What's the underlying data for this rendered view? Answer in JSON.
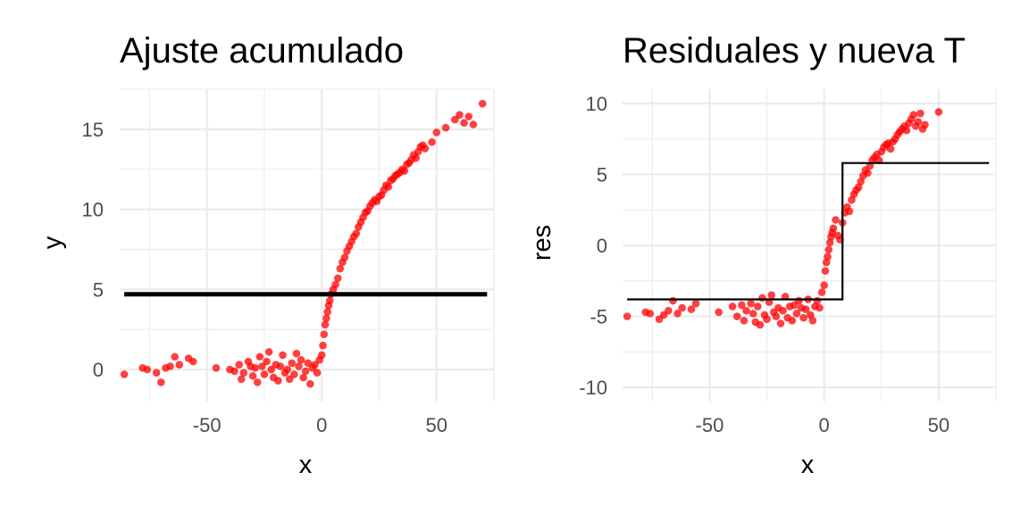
{
  "chart_data": [
    {
      "type": "scatter",
      "title": "Ajuste acumulado",
      "xlabel": "x",
      "ylabel": "y",
      "xlim": [
        -88,
        75
      ],
      "ylim": [
        -2,
        17.5
      ],
      "x_ticks": [
        -50,
        0,
        50
      ],
      "x_tick_labels": [
        "-50",
        "0",
        "50"
      ],
      "y_ticks": [
        0,
        5,
        10,
        15
      ],
      "y_tick_labels": [
        "0",
        "5",
        "10",
        "15"
      ],
      "grid": true,
      "colors": {
        "points": "#ff0000",
        "line": "#000000"
      },
      "series": [
        {
          "kind": "points",
          "x": [
            -86,
            -78,
            -76,
            -72,
            -70,
            -68,
            -66,
            -64,
            -62,
            -58,
            -56,
            -46,
            -40,
            -38,
            -36,
            -35,
            -34,
            -32,
            -31,
            -30,
            -29,
            -28,
            -27,
            -26,
            -25,
            -24,
            -23,
            -22,
            -21,
            -20,
            -19,
            -18,
            -17,
            -16,
            -15,
            -14,
            -13,
            -12,
            -11,
            -10,
            -9,
            -8,
            -7,
            -6,
            -5,
            -4,
            -3,
            -2,
            -1,
            0,
            0.5,
            1,
            1.5,
            2,
            2.5,
            3,
            3.5,
            4,
            5,
            6,
            7,
            8,
            9,
            10,
            11,
            12,
            13,
            14,
            15,
            16,
            17,
            18,
            19,
            20,
            21,
            22,
            23,
            24,
            25,
            26,
            27,
            28,
            29,
            30,
            31,
            32,
            33,
            34,
            35,
            36,
            37,
            38,
            39,
            40,
            41,
            42,
            43,
            44,
            45,
            48,
            50,
            54,
            58,
            60,
            62,
            64,
            66,
            70
          ],
          "y": [
            -0.3,
            0.1,
            0,
            -0.2,
            -0.8,
            0.1,
            0.2,
            0.8,
            0.3,
            0.7,
            0.5,
            0.1,
            0,
            -0.1,
            0.3,
            -0.6,
            -0.2,
            0.5,
            0.2,
            -0.4,
            0.1,
            -0.8,
            0.8,
            0.2,
            -0.3,
            0.5,
            1.1,
            0,
            -0.5,
            0.3,
            -0.7,
            0.2,
            0.9,
            -0.2,
            0,
            -0.6,
            0.4,
            -0.3,
            1,
            0.2,
            0.6,
            -0.5,
            -0.1,
            0.4,
            -0.9,
            0.1,
            0.3,
            -0.2,
            0.6,
            0.9,
            1.5,
            2.2,
            2.8,
            3.2,
            3.6,
            4,
            4.3,
            4.7,
            5,
            5.3,
            5.7,
            6.3,
            6.7,
            7,
            7.4,
            7.7,
            8,
            8.3,
            8.5,
            8.9,
            9.2,
            9.5,
            9.8,
            9.9,
            10.2,
            10.4,
            10.6,
            10.5,
            10.8,
            10.9,
            11.2,
            11.5,
            11.4,
            11.8,
            11.9,
            12.1,
            12.2,
            12.3,
            12.5,
            12.4,
            12.8,
            12.9,
            13.1,
            13.4,
            13.2,
            13.6,
            13.9,
            14,
            13.8,
            14.2,
            14.8,
            15.1,
            15.6,
            15.9,
            15.4,
            15.8,
            15.3,
            16.6
          ]
        },
        {
          "kind": "line",
          "x": [
            -86,
            72
          ],
          "y": [
            4.7,
            4.7
          ]
        }
      ]
    },
    {
      "type": "scatter",
      "title": "Residuales y nueva T",
      "xlabel": "x",
      "ylabel": "res",
      "xlim": [
        -88,
        75
      ],
      "ylim": [
        -11,
        11
      ],
      "x_ticks": [
        -50,
        0,
        50
      ],
      "x_tick_labels": [
        "-50",
        "0",
        "50"
      ],
      "y_ticks": [
        -10,
        -5,
        0,
        5,
        10
      ],
      "y_tick_labels": [
        "-10",
        "-5",
        "0",
        "5",
        "10"
      ],
      "grid": true,
      "colors": {
        "points": "#ff0000",
        "line": "#000000"
      },
      "series": [
        {
          "kind": "points",
          "x": [
            -86,
            -78,
            -76,
            -72,
            -70,
            -68,
            -66,
            -64,
            -62,
            -58,
            -56,
            -46,
            -40,
            -38,
            -36,
            -35,
            -34,
            -32,
            -31,
            -30,
            -29,
            -28,
            -27,
            -26,
            -25,
            -24,
            -23,
            -22,
            -21,
            -20,
            -19,
            -18,
            -17,
            -16,
            -15,
            -14,
            -13,
            -12,
            -11,
            -10,
            -9,
            -8,
            -7,
            -6,
            -5,
            -4,
            -3,
            -2,
            -1,
            0,
            0.5,
            1,
            1.5,
            2,
            2.5,
            3,
            3.5,
            4,
            5,
            6,
            7,
            8,
            9,
            10,
            11,
            12,
            13,
            14,
            15,
            16,
            17,
            18,
            19,
            20,
            21,
            22,
            23,
            24,
            25,
            26,
            27,
            28,
            29,
            30,
            31,
            32,
            33,
            34,
            35,
            36,
            37,
            38,
            39,
            40,
            41,
            42,
            43,
            44,
            50
          ],
          "y": [
            -5,
            -4.7,
            -4.8,
            -5.2,
            -4.9,
            -4.6,
            -3.9,
            -4.8,
            -4.4,
            -4.5,
            -4.1,
            -4.7,
            -4.3,
            -5.0,
            -4.2,
            -5.3,
            -4.6,
            -4.1,
            -4.8,
            -5.4,
            -4.3,
            -5.6,
            -3.7,
            -4.9,
            -5.2,
            -4.0,
            -3.5,
            -4.7,
            -5.0,
            -4.4,
            -5.5,
            -4.6,
            -3.6,
            -5.1,
            -4.3,
            -5.3,
            -4.2,
            -4.8,
            -3.9,
            -4.4,
            -5.1,
            -4.5,
            -3.8,
            -4.9,
            -5.3,
            -4.3,
            -3.9,
            -4.4,
            -3.3,
            -2.8,
            -1.8,
            -1.2,
            -0.8,
            -0.3,
            0.2,
            0.6,
            0.9,
            1.2,
            1.8,
            0.7,
            0.4,
            1.6,
            2.3,
            2.7,
            2.4,
            3.2,
            3.6,
            3.9,
            4.1,
            4.5,
            4.9,
            5.3,
            5.1,
            5.6,
            6.0,
            6.2,
            6.4,
            6.0,
            6.6,
            6.9,
            7.1,
            7.2,
            6.8,
            7.3,
            7.5,
            7.8,
            8.0,
            8.2,
            8.4,
            8.1,
            8.6,
            8.9,
            9.2,
            8.4,
            8.7,
            9.3,
            8.2,
            8.5,
            9.4
          ]
        },
        {
          "kind": "step",
          "x": [
            -86,
            8,
            8,
            72
          ],
          "y": [
            -3.8,
            -3.8,
            5.8,
            5.8
          ]
        }
      ]
    }
  ]
}
